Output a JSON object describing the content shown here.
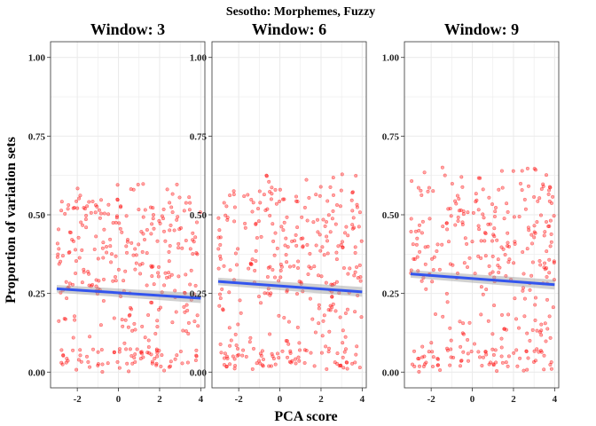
{
  "figure": {
    "title": "Sesotho: Morphemes, Fuzzy",
    "xlabel": "PCA score",
    "ylabel": "Proportion of variation sets"
  },
  "colors": {
    "points": "#ff0000",
    "fit_line": "#3355ee",
    "ribbon": "#999999",
    "grid": "#ebebeb",
    "frame": "#333333"
  },
  "chart_data": [
    {
      "type": "scatter",
      "title": "Window: 3",
      "xlim": [
        -3.3,
        4.2
      ],
      "ylim": [
        -0.05,
        1.05
      ],
      "x_ticks": [
        -2,
        0,
        2,
        4
      ],
      "x_tick_labels": [
        "-2",
        "0",
        "2",
        "4"
      ],
      "y_ticks": [
        0.0,
        0.25,
        0.5,
        0.75,
        1.0
      ],
      "y_tick_labels": [
        "0.00",
        "0.25",
        "0.50",
        "0.75",
        "1.00"
      ],
      "grid": true,
      "fit": {
        "x": [
          -3.0,
          4.0
        ],
        "y": [
          0.265,
          0.235
        ]
      },
      "point_cloud": {
        "main_range": [
          0.25,
          0.55
        ],
        "low_range": [
          0.0,
          0.25
        ],
        "max_y": 0.6
      }
    },
    {
      "type": "scatter",
      "title": "Window: 6",
      "xlim": [
        -3.3,
        4.2
      ],
      "ylim": [
        -0.05,
        1.05
      ],
      "x_ticks": [
        -2,
        0,
        2,
        4
      ],
      "x_tick_labels": [
        "-2",
        "0",
        "2",
        "4"
      ],
      "y_ticks": [
        0.0,
        0.25,
        0.5,
        0.75,
        1.0
      ],
      "y_tick_labels": [
        "0.00",
        "0.25",
        "0.50",
        "0.75",
        "1.00"
      ],
      "grid": true,
      "fit": {
        "x": [
          -3.0,
          4.0
        ],
        "y": [
          0.288,
          0.255
        ]
      },
      "point_cloud": {
        "main_range": [
          0.25,
          0.58
        ],
        "low_range": [
          0.0,
          0.25
        ],
        "max_y": 0.63
      }
    },
    {
      "type": "scatter",
      "title": "Window: 9",
      "xlim": [
        -3.3,
        4.2
      ],
      "ylim": [
        -0.05,
        1.05
      ],
      "x_ticks": [
        -2,
        0,
        2,
        4
      ],
      "x_tick_labels": [
        "-2",
        "0",
        "2",
        "4"
      ],
      "y_ticks": [
        0.0,
        0.25,
        0.5,
        0.75,
        1.0
      ],
      "y_tick_labels": [
        "0.00",
        "0.25",
        "0.50",
        "0.75",
        "1.00"
      ],
      "grid": true,
      "fit": {
        "x": [
          -3.0,
          4.0
        ],
        "y": [
          0.312,
          0.278
        ]
      },
      "point_cloud": {
        "main_range": [
          0.27,
          0.6
        ],
        "low_range": [
          0.0,
          0.27
        ],
        "max_y": 0.66
      }
    }
  ]
}
